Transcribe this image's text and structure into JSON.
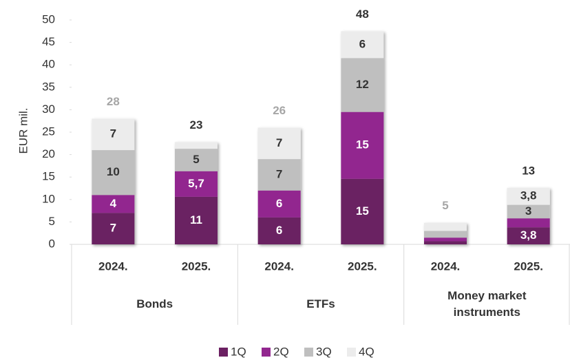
{
  "chart_data": {
    "type": "stacked_bar",
    "y_label": "EUR mil.",
    "categories": [
      "2024.",
      "2025.",
      "2024.",
      "2025.",
      "2024.",
      "2025."
    ],
    "groups": [
      "Bonds",
      "ETFs",
      "Money market instruments"
    ],
    "series": [
      {
        "name": "1Q",
        "color": "#6b2062",
        "label_color": "#ffffff",
        "values": [
          7,
          10.6,
          6,
          14.6,
          0.7,
          3.8
        ],
        "value_labels": [
          "7",
          "11",
          "6",
          "15",
          null,
          "3,8"
        ]
      },
      {
        "name": "2Q",
        "color": "#92278f",
        "label_color": "#ffffff",
        "values": [
          4,
          5.7,
          6,
          14.9,
          0.8,
          2
        ],
        "value_labels": [
          "4",
          "5,7",
          "6",
          "15",
          null,
          null
        ]
      },
      {
        "name": "3Q",
        "color": "#bfbfbf",
        "label_color": "#333333",
        "values": [
          10,
          5,
          7,
          12,
          1.5,
          3
        ],
        "value_labels": [
          "10",
          "5",
          "7",
          "12",
          null,
          "3"
        ]
      },
      {
        "name": "4Q",
        "color": "#ececec",
        "label_color": "#333333",
        "values": [
          7,
          1.5,
          7,
          6,
          1.8,
          3.8
        ],
        "value_labels": [
          "7",
          null,
          "7",
          "6",
          null,
          "3,8"
        ]
      }
    ],
    "totals": [
      28,
      23,
      26,
      48,
      5,
      13
    ],
    "total_colors": [
      "#a6a6a6",
      "#333333",
      "#a6a6a6",
      "#333333",
      "#a6a6a6",
      "#333333"
    ],
    "ylim": [
      0,
      50
    ],
    "yticks": [
      0,
      5,
      10,
      15,
      20,
      25,
      30,
      35,
      40,
      45,
      50
    ],
    "grid": false,
    "legend": "bottom"
  }
}
